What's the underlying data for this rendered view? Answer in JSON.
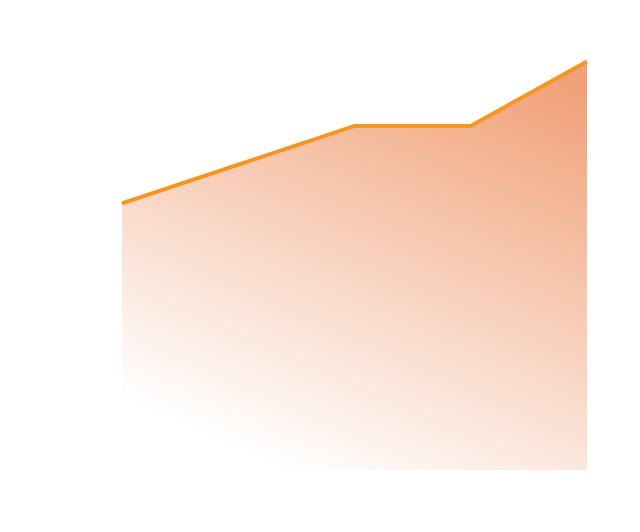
{
  "chart_data": {
    "type": "area",
    "categories": [
      null,
      null,
      null,
      null,
      null
    ],
    "values": [
      62,
      71,
      80,
      80,
      95
    ],
    "color": "#f7961e",
    "fill_color": "#ee9060",
    "ylim": [
      0,
      100
    ]
  }
}
